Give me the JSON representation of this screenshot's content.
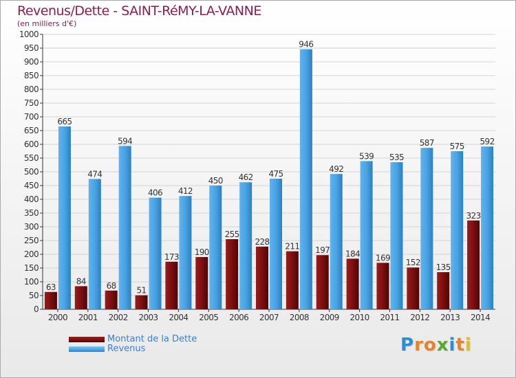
{
  "header": {
    "title": "Revenus/Dette - SAINT-RéMY-LA-VANNE",
    "subtitle": "(en milliers d'€)"
  },
  "legend": {
    "debt_label": "Montant de la Dette",
    "revenue_label": "Revenus"
  },
  "logo": {
    "letters": [
      "P",
      "r",
      "o",
      "x",
      "i",
      "t",
      "i"
    ],
    "colors": [
      "#2b8fd0",
      "#e6842a",
      "#e6842a",
      "#5aa82f",
      "#2b8fd0",
      "#e6842a",
      "#d6c02e"
    ]
  },
  "colors": {
    "debt": "#7a1010",
    "revenue": "#4aa3e2",
    "title": "#8b1e4d",
    "grid": "#d4d4d4"
  },
  "chart_data": {
    "type": "bar",
    "title": "Revenus/Dette - SAINT-RéMY-LA-VANNE",
    "subtitle": "(en milliers d'€)",
    "ylim": [
      0,
      1000
    ],
    "ytick_step": 50,
    "grid": true,
    "categories": [
      "2000",
      "2001",
      "2002",
      "2003",
      "2004",
      "2005",
      "2006",
      "2007",
      "2008",
      "2009",
      "2010",
      "2011",
      "2012",
      "2013",
      "2014"
    ],
    "series": [
      {
        "name": "Montant de la Dette",
        "values": [
          63,
          84,
          68,
          51,
          173,
          190,
          255,
          228,
          211,
          197,
          184,
          169,
          152,
          135,
          323
        ]
      },
      {
        "name": "Revenus",
        "values": [
          665,
          474,
          594,
          406,
          412,
          450,
          462,
          475,
          946,
          492,
          539,
          535,
          587,
          575,
          592
        ]
      }
    ],
    "legend_position": "bottom-left"
  }
}
